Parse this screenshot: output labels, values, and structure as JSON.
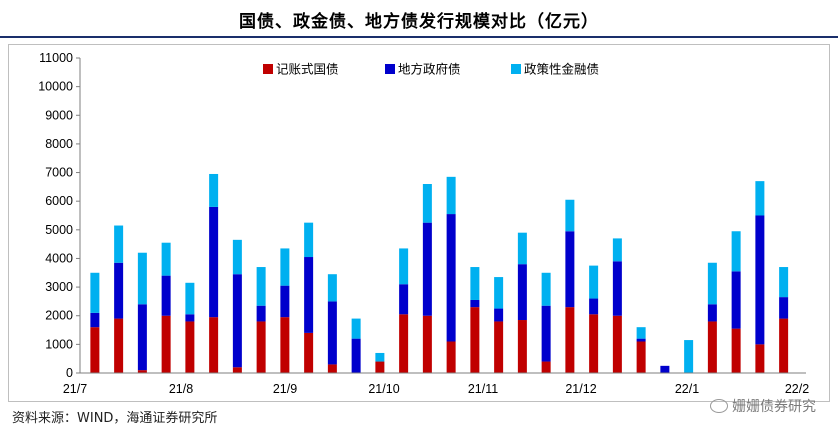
{
  "header": {
    "title": "国债、政金债、地方债发行规模对比（亿元）"
  },
  "footer": {
    "source": "资料来源：WIND，海通证券研究所"
  },
  "watermark": {
    "text": "姗姗债券研究"
  },
  "colors": {
    "series": [
      "#c00000",
      "#0000cc",
      "#00b0f0"
    ],
    "axis": "#7f7f7f",
    "frame": "#bfbfbf"
  },
  "chart_data": {
    "type": "bar",
    "stacked": true,
    "title": "国债、政金债、地方债发行规模对比（亿元）",
    "ylim": [
      0,
      11000
    ],
    "yticks": [
      0,
      1000,
      2000,
      3000,
      4000,
      5000,
      6000,
      7000,
      8000,
      9000,
      10000,
      11000
    ],
    "x_tick_labels": [
      "21/7",
      "21/8",
      "21/9",
      "21/10",
      "21/11",
      "21/12",
      "22/1",
      "22/2"
    ],
    "legend_position": "top-center",
    "series": [
      {
        "name": "记账式国债",
        "values": [
          1600,
          1900,
          100,
          2000,
          1800,
          1950,
          200,
          1800,
          1950,
          1400,
          300,
          0,
          400,
          2050,
          2000,
          1100,
          2300,
          1800,
          1850,
          400,
          2300,
          2050,
          2000,
          1100,
          0,
          0,
          1800,
          1550,
          1000,
          1900
        ]
      },
      {
        "name": "地方政府债",
        "values": [
          500,
          1950,
          2300,
          1400,
          250,
          3850,
          3250,
          550,
          1100,
          2650,
          2200,
          1200,
          0,
          1050,
          3250,
          4450,
          250,
          450,
          1950,
          1950,
          2650,
          550,
          1900,
          100,
          250,
          0,
          600,
          2000,
          4500,
          750
        ]
      },
      {
        "name": "政策性金融债",
        "values": [
          1400,
          1300,
          1800,
          1150,
          1100,
          1150,
          1200,
          1350,
          1300,
          1200,
          950,
          700,
          300,
          1250,
          1350,
          1300,
          1150,
          1100,
          1100,
          1150,
          1100,
          1150,
          800,
          400,
          0,
          1150,
          1450,
          1400,
          1200,
          1050
        ]
      }
    ]
  }
}
